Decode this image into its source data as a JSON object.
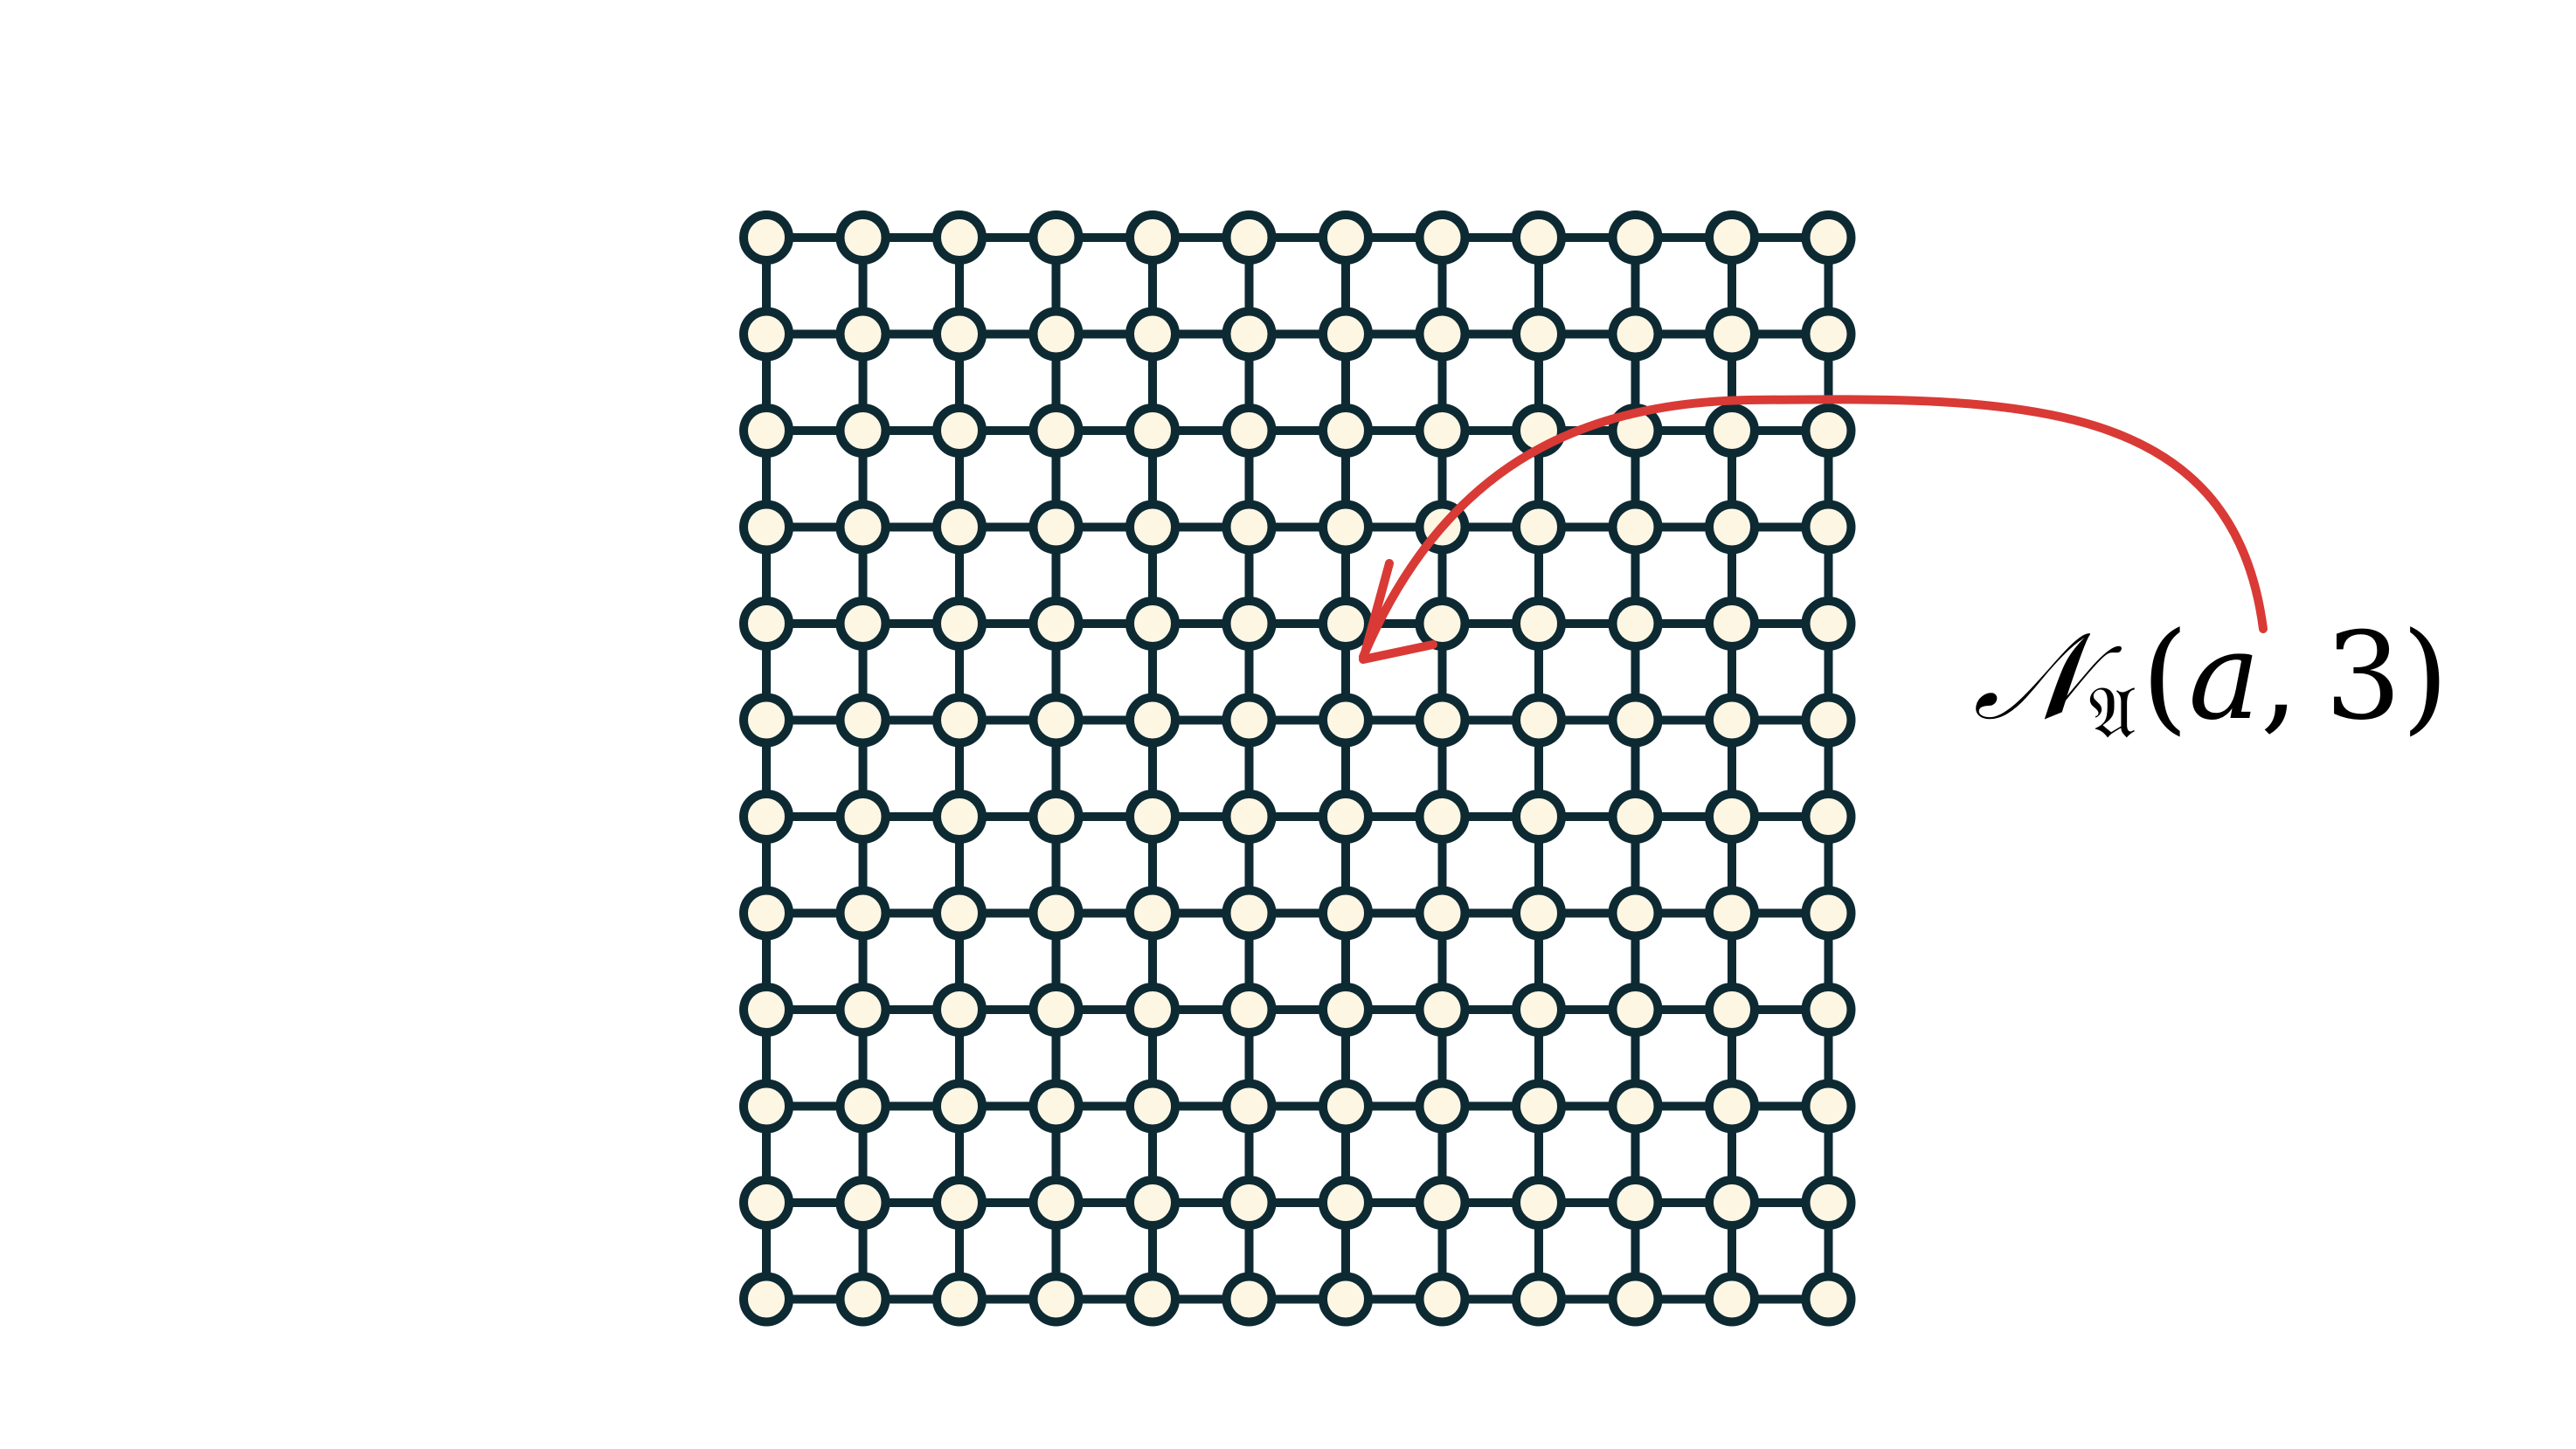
{
  "diagram": {
    "grid": {
      "rows": 12,
      "cols": 12,
      "node_fill": "#fdf6e3",
      "node_stroke": "#0d2a33",
      "edge_color": "#0d2a33"
    },
    "highlighted_node": {
      "row": 5,
      "col": 6
    },
    "annotation": {
      "script_letter": "𝒩",
      "subscript": "𝔄",
      "open_paren": "(",
      "argument_var": "a",
      "comma": ",",
      "argument_radius": "3",
      "close_paren": ")",
      "arrow_color": "#d93a35",
      "text_color": "#000000"
    }
  }
}
